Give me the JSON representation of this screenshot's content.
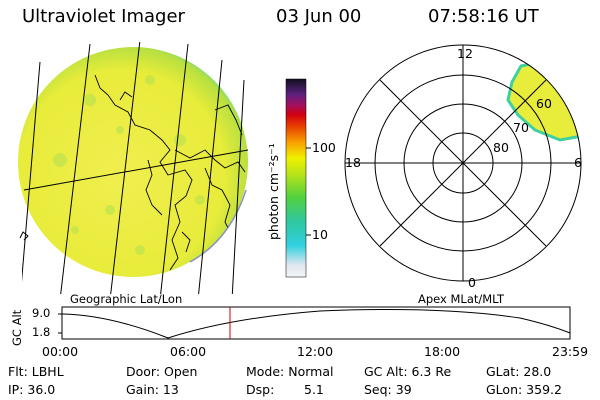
{
  "header": {
    "title": "Ultraviolet Imager",
    "date": "03 Jun 00",
    "time": "07:58:16 UT"
  },
  "colorbar": {
    "label": "photon cm⁻²s⁻¹",
    "ticks": [
      "100",
      "10"
    ],
    "scale": "log"
  },
  "geo_panel": {
    "label": "Geographic Lat/Lon"
  },
  "polar_panel": {
    "label": "Apex MLat/MLT",
    "mlt_labels": [
      "12",
      "18",
      "6",
      "0"
    ],
    "mlat_labels": [
      "60",
      "70",
      "80"
    ]
  },
  "altitude_plot": {
    "ylabel": "GC Alt",
    "yticks": [
      "9.0",
      "1.8"
    ],
    "xticks": [
      "00:00",
      "06:00",
      "12:00",
      "18:00",
      "23:59"
    ],
    "current_time_marker": "07:58"
  },
  "status": {
    "row1": {
      "filter": "Flt: LBHL",
      "door": "Door: Open",
      "mode": "Mode: Normal",
      "gc_alt": "GC Alt: 6.3 Re",
      "glat": "GLat: 28.0"
    },
    "row2": {
      "ip": "IP: 36.0",
      "gain": "Gain: 13",
      "dsp": "Dsp:",
      "dsp_value": "5.1",
      "seq": "Seq: 39",
      "glon": "GLon: 359.2"
    }
  },
  "colors": {
    "disc_fill": "#e8ec3a",
    "disc_rim": "#40d0a0",
    "marker": "#cc0000"
  }
}
